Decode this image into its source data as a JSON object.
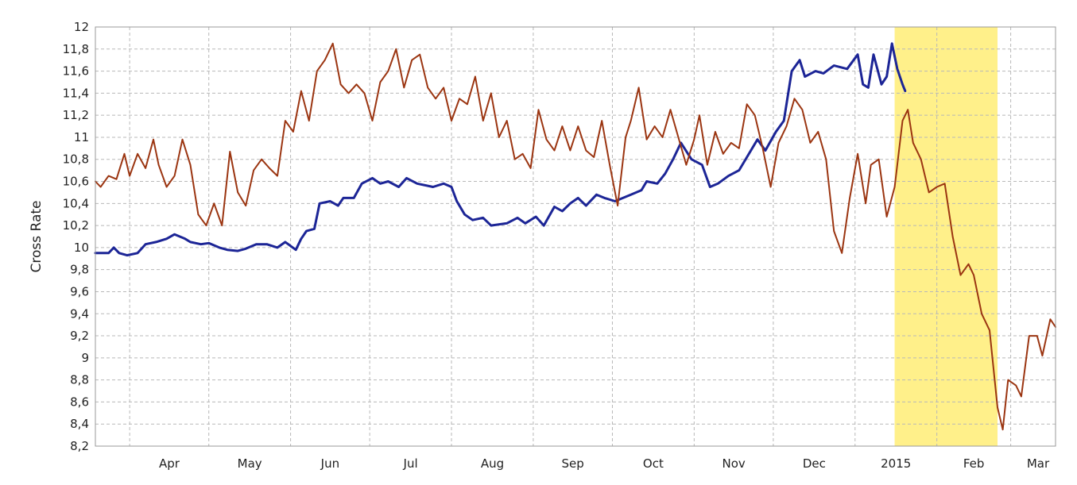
{
  "chart_data": {
    "type": "line",
    "ylabel": "Cross Rate",
    "ylim": [
      8.2,
      12
    ],
    "y_ticks": [
      "8,2",
      "8,4",
      "8,6",
      "8,8",
      "9",
      "9,2",
      "9,4",
      "9,6",
      "9,8",
      "10",
      "10,2",
      "10,4",
      "10,6",
      "10,8",
      "11",
      "11,2",
      "11,4",
      "11,6",
      "11,8",
      "12"
    ],
    "x_domain": [
      "2014-03-19",
      "2015-03-18"
    ],
    "x_ticks": [
      {
        "date": "2014-04-01",
        "label": "Apr"
      },
      {
        "date": "2014-05-01",
        "label": "May"
      },
      {
        "date": "2014-06-01",
        "label": "Jun"
      },
      {
        "date": "2014-07-01",
        "label": "Jul"
      },
      {
        "date": "2014-08-01",
        "label": "Aug"
      },
      {
        "date": "2014-09-01",
        "label": "Sep"
      },
      {
        "date": "2014-10-01",
        "label": "Oct"
      },
      {
        "date": "2014-11-01",
        "label": "Nov"
      },
      {
        "date": "2014-12-01",
        "label": "Dec"
      },
      {
        "date": "2015-01-01",
        "label": "2015"
      },
      {
        "date": "2015-02-01",
        "label": "Feb"
      },
      {
        "date": "2015-03-01",
        "label": "Mar"
      }
    ],
    "grid": true,
    "highlight": {
      "from": "2015-01-16",
      "to": "2015-02-24",
      "color": "#fff08a"
    },
    "series": [
      {
        "color": "#1c2596",
        "points": [
          [
            "2014-03-19",
            9.95
          ],
          [
            "2014-03-24",
            9.95
          ],
          [
            "2014-03-26",
            10.0
          ],
          [
            "2014-03-28",
            9.95
          ],
          [
            "2014-03-31",
            9.93
          ],
          [
            "2014-04-04",
            9.95
          ],
          [
            "2014-04-07",
            10.03
          ],
          [
            "2014-04-11",
            10.05
          ],
          [
            "2014-04-15",
            10.08
          ],
          [
            "2014-04-18",
            10.12
          ],
          [
            "2014-04-22",
            10.08
          ],
          [
            "2014-04-24",
            10.05
          ],
          [
            "2014-04-28",
            10.03
          ],
          [
            "2014-05-01",
            10.04
          ],
          [
            "2014-05-05",
            10.0
          ],
          [
            "2014-05-08",
            9.98
          ],
          [
            "2014-05-12",
            9.97
          ],
          [
            "2014-05-15",
            9.99
          ],
          [
            "2014-05-19",
            10.03
          ],
          [
            "2014-05-23",
            10.03
          ],
          [
            "2014-05-27",
            10.0
          ],
          [
            "2014-05-30",
            10.05
          ],
          [
            "2014-06-03",
            9.98
          ],
          [
            "2014-06-05",
            10.08
          ],
          [
            "2014-06-07",
            10.15
          ],
          [
            "2014-06-10",
            10.17
          ],
          [
            "2014-06-12",
            10.4
          ],
          [
            "2014-06-16",
            10.42
          ],
          [
            "2014-06-19",
            10.38
          ],
          [
            "2014-06-21",
            10.45
          ],
          [
            "2014-06-25",
            10.45
          ],
          [
            "2014-06-28",
            10.58
          ],
          [
            "2014-07-02",
            10.63
          ],
          [
            "2014-07-05",
            10.58
          ],
          [
            "2014-07-08",
            10.6
          ],
          [
            "2014-07-12",
            10.55
          ],
          [
            "2014-07-15",
            10.63
          ],
          [
            "2014-07-19",
            10.58
          ],
          [
            "2014-07-25",
            10.55
          ],
          [
            "2014-07-29",
            10.58
          ],
          [
            "2014-08-01",
            10.55
          ],
          [
            "2014-08-03",
            10.42
          ],
          [
            "2014-08-06",
            10.3
          ],
          [
            "2014-08-09",
            10.25
          ],
          [
            "2014-08-13",
            10.27
          ],
          [
            "2014-08-16",
            10.2
          ],
          [
            "2014-08-22",
            10.22
          ],
          [
            "2014-08-26",
            10.27
          ],
          [
            "2014-08-29",
            10.22
          ],
          [
            "2014-09-02",
            10.28
          ],
          [
            "2014-09-05",
            10.2
          ],
          [
            "2014-09-09",
            10.37
          ],
          [
            "2014-09-12",
            10.33
          ],
          [
            "2014-09-15",
            10.4
          ],
          [
            "2014-09-18",
            10.45
          ],
          [
            "2014-09-21",
            10.38
          ],
          [
            "2014-09-25",
            10.48
          ],
          [
            "2014-09-28",
            10.45
          ],
          [
            "2014-10-02",
            10.42
          ],
          [
            "2014-10-05",
            10.45
          ],
          [
            "2014-10-08",
            10.48
          ],
          [
            "2014-10-12",
            10.52
          ],
          [
            "2014-10-14",
            10.6
          ],
          [
            "2014-10-18",
            10.58
          ],
          [
            "2014-10-21",
            10.67
          ],
          [
            "2014-10-24",
            10.8
          ],
          [
            "2014-10-27",
            10.95
          ],
          [
            "2014-10-31",
            10.8
          ],
          [
            "2014-11-04",
            10.75
          ],
          [
            "2014-11-07",
            10.55
          ],
          [
            "2014-11-10",
            10.58
          ],
          [
            "2014-11-14",
            10.65
          ],
          [
            "2014-11-18",
            10.7
          ],
          [
            "2014-11-21",
            10.82
          ],
          [
            "2014-11-25",
            10.98
          ],
          [
            "2014-11-28",
            10.88
          ],
          [
            "2014-12-02",
            11.05
          ],
          [
            "2014-12-05",
            11.15
          ],
          [
            "2014-12-08",
            11.6
          ],
          [
            "2014-12-11",
            11.7
          ],
          [
            "2014-12-13",
            11.55
          ],
          [
            "2014-12-17",
            11.6
          ],
          [
            "2014-12-20",
            11.58
          ],
          [
            "2014-12-24",
            11.65
          ],
          [
            "2014-12-29",
            11.62
          ],
          [
            "2015-01-02",
            11.75
          ],
          [
            "2015-01-04",
            11.48
          ],
          [
            "2015-01-06",
            11.45
          ],
          [
            "2015-01-08",
            11.75
          ],
          [
            "2015-01-11",
            11.48
          ],
          [
            "2015-01-13",
            11.55
          ],
          [
            "2015-01-15",
            11.85
          ],
          [
            "2015-01-17",
            11.62
          ],
          [
            "2015-01-19",
            11.48
          ],
          [
            "2015-01-20",
            11.42
          ]
        ]
      },
      {
        "color": "#9b3511",
        "points": [
          [
            "2014-03-19",
            10.6
          ],
          [
            "2014-03-21",
            10.55
          ],
          [
            "2014-03-24",
            10.65
          ],
          [
            "2014-03-27",
            10.62
          ],
          [
            "2014-03-30",
            10.85
          ],
          [
            "2014-04-01",
            10.65
          ],
          [
            "2014-04-04",
            10.85
          ],
          [
            "2014-04-07",
            10.72
          ],
          [
            "2014-04-10",
            10.98
          ],
          [
            "2014-04-12",
            10.75
          ],
          [
            "2014-04-15",
            10.55
          ],
          [
            "2014-04-18",
            10.65
          ],
          [
            "2014-04-21",
            10.98
          ],
          [
            "2014-04-24",
            10.75
          ],
          [
            "2014-04-27",
            10.3
          ],
          [
            "2014-04-30",
            10.2
          ],
          [
            "2014-05-03",
            10.4
          ],
          [
            "2014-05-06",
            10.2
          ],
          [
            "2014-05-09",
            10.87
          ],
          [
            "2014-05-12",
            10.5
          ],
          [
            "2014-05-15",
            10.38
          ],
          [
            "2014-05-18",
            10.7
          ],
          [
            "2014-05-21",
            10.8
          ],
          [
            "2014-05-24",
            10.72
          ],
          [
            "2014-05-27",
            10.65
          ],
          [
            "2014-05-30",
            11.15
          ],
          [
            "2014-06-02",
            11.05
          ],
          [
            "2014-06-05",
            11.42
          ],
          [
            "2014-06-08",
            11.15
          ],
          [
            "2014-06-11",
            11.6
          ],
          [
            "2014-06-14",
            11.7
          ],
          [
            "2014-06-17",
            11.85
          ],
          [
            "2014-06-20",
            11.48
          ],
          [
            "2014-06-23",
            11.4
          ],
          [
            "2014-06-26",
            11.48
          ],
          [
            "2014-06-29",
            11.4
          ],
          [
            "2014-07-02",
            11.15
          ],
          [
            "2014-07-05",
            11.5
          ],
          [
            "2014-07-08",
            11.6
          ],
          [
            "2014-07-11",
            11.8
          ],
          [
            "2014-07-14",
            11.45
          ],
          [
            "2014-07-17",
            11.7
          ],
          [
            "2014-07-20",
            11.75
          ],
          [
            "2014-07-23",
            11.45
          ],
          [
            "2014-07-26",
            11.35
          ],
          [
            "2014-07-29",
            11.45
          ],
          [
            "2014-08-01",
            11.15
          ],
          [
            "2014-08-04",
            11.35
          ],
          [
            "2014-08-07",
            11.3
          ],
          [
            "2014-08-10",
            11.55
          ],
          [
            "2014-08-13",
            11.15
          ],
          [
            "2014-08-16",
            11.4
          ],
          [
            "2014-08-19",
            11.0
          ],
          [
            "2014-08-22",
            11.15
          ],
          [
            "2014-08-25",
            10.8
          ],
          [
            "2014-08-28",
            10.85
          ],
          [
            "2014-08-31",
            10.72
          ],
          [
            "2014-09-03",
            11.25
          ],
          [
            "2014-09-06",
            10.98
          ],
          [
            "2014-09-09",
            10.88
          ],
          [
            "2014-09-12",
            11.1
          ],
          [
            "2014-09-15",
            10.88
          ],
          [
            "2014-09-18",
            11.1
          ],
          [
            "2014-09-21",
            10.88
          ],
          [
            "2014-09-24",
            10.82
          ],
          [
            "2014-09-27",
            11.15
          ],
          [
            "2014-09-30",
            10.75
          ],
          [
            "2014-10-03",
            10.38
          ],
          [
            "2014-10-06",
            11.0
          ],
          [
            "2014-10-08",
            11.15
          ],
          [
            "2014-10-11",
            11.45
          ],
          [
            "2014-10-14",
            10.98
          ],
          [
            "2014-10-17",
            11.1
          ],
          [
            "2014-10-20",
            11.0
          ],
          [
            "2014-10-23",
            11.25
          ],
          [
            "2014-10-26",
            11.0
          ],
          [
            "2014-10-29",
            10.75
          ],
          [
            "2014-11-01",
            10.98
          ],
          [
            "2014-11-03",
            11.2
          ],
          [
            "2014-11-06",
            10.75
          ],
          [
            "2014-11-09",
            11.05
          ],
          [
            "2014-11-12",
            10.85
          ],
          [
            "2014-11-15",
            10.95
          ],
          [
            "2014-11-18",
            10.9
          ],
          [
            "2014-11-21",
            11.3
          ],
          [
            "2014-11-24",
            11.2
          ],
          [
            "2014-11-27",
            10.9
          ],
          [
            "2014-11-30",
            10.55
          ],
          [
            "2014-12-03",
            10.95
          ],
          [
            "2014-12-06",
            11.1
          ],
          [
            "2014-12-09",
            11.35
          ],
          [
            "2014-12-12",
            11.25
          ],
          [
            "2014-12-15",
            10.95
          ],
          [
            "2014-12-18",
            11.05
          ],
          [
            "2014-12-21",
            10.8
          ],
          [
            "2014-12-24",
            10.15
          ],
          [
            "2014-12-27",
            9.95
          ],
          [
            "2014-12-30",
            10.45
          ],
          [
            "2015-01-02",
            10.85
          ],
          [
            "2015-01-05",
            10.4
          ],
          [
            "2015-01-07",
            10.75
          ],
          [
            "2015-01-10",
            10.8
          ],
          [
            "2015-01-13",
            10.28
          ],
          [
            "2015-01-16",
            10.55
          ],
          [
            "2015-01-19",
            11.15
          ],
          [
            "2015-01-21",
            11.25
          ],
          [
            "2015-01-23",
            10.95
          ],
          [
            "2015-01-26",
            10.8
          ],
          [
            "2015-01-29",
            10.5
          ],
          [
            "2015-02-01",
            10.55
          ],
          [
            "2015-02-04",
            10.58
          ],
          [
            "2015-02-07",
            10.1
          ],
          [
            "2015-02-10",
            9.75
          ],
          [
            "2015-02-13",
            9.85
          ],
          [
            "2015-02-15",
            9.75
          ],
          [
            "2015-02-18",
            9.4
          ],
          [
            "2015-02-21",
            9.25
          ],
          [
            "2015-02-24",
            8.55
          ],
          [
            "2015-02-26",
            8.35
          ],
          [
            "2015-02-28",
            8.8
          ],
          [
            "2015-03-03",
            8.75
          ],
          [
            "2015-03-05",
            8.65
          ],
          [
            "2015-03-08",
            9.2
          ],
          [
            "2015-03-11",
            9.2
          ],
          [
            "2015-03-13",
            9.02
          ],
          [
            "2015-03-16",
            9.35
          ],
          [
            "2015-03-18",
            9.28
          ]
        ]
      }
    ]
  }
}
